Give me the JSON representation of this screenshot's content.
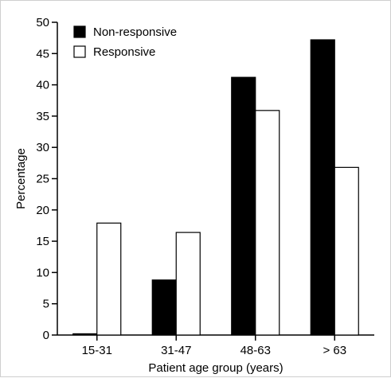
{
  "chart_data": {
    "type": "bar",
    "title": "",
    "xlabel": "Patient age group (years)",
    "ylabel": "Percentage",
    "categories": [
      "15-31",
      "31-47",
      "48-63",
      "> 63"
    ],
    "ylim": [
      0,
      50
    ],
    "yticks": [
      "0",
      "5",
      "10",
      "15",
      "20",
      "25",
      "30",
      "35",
      "40",
      "45",
      "50"
    ],
    "series": [
      {
        "name": "Non-responsive",
        "color": "#000000",
        "values": [
          0.2,
          8.8,
          41.2,
          47.2
        ]
      },
      {
        "name": "Responsive",
        "color": "#ffffff",
        "values": [
          17.9,
          16.4,
          35.9,
          26.8
        ]
      }
    ],
    "legend_position": "top-left",
    "grid": false
  }
}
